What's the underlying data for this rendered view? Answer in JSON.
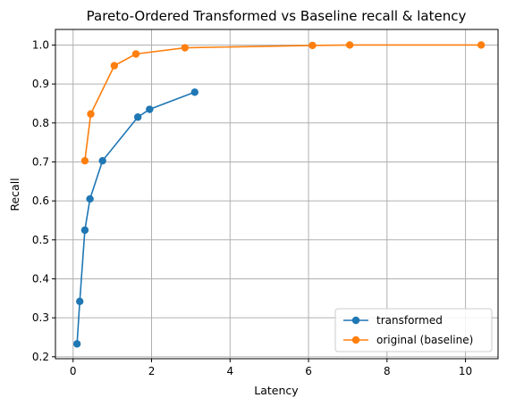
{
  "chart_data": {
    "type": "line",
    "title": "Pareto-Ordered Transformed vs Baseline recall & latency",
    "xlabel": "Latency",
    "ylabel": "Recall",
    "xlim": [
      -0.45,
      10.83
    ],
    "ylim": [
      0.195,
      1.04
    ],
    "xticks": [
      0,
      2,
      4,
      6,
      8,
      10
    ],
    "yticks": [
      0.2,
      0.3,
      0.4,
      0.5,
      0.6,
      0.7,
      0.8,
      0.9,
      1.0
    ],
    "xtick_labels": [
      "0",
      "2",
      "4",
      "6",
      "8",
      "10"
    ],
    "ytick_labels": [
      "0.2",
      "0.3",
      "0.4",
      "0.5",
      "0.6",
      "0.7",
      "0.8",
      "0.9",
      "1.0"
    ],
    "grid": true,
    "legend_position": "lower-right",
    "series": [
      {
        "name": "transformed",
        "color": "#1f77b4",
        "marker": "circle",
        "x": [
          0.1,
          0.17,
          0.3,
          0.43,
          0.75,
          1.65,
          1.95,
          3.1
        ],
        "y": [
          0.233,
          0.342,
          0.525,
          0.605,
          0.703,
          0.815,
          0.835,
          0.879
        ]
      },
      {
        "name": "original (baseline)",
        "color": "#ff7f0e",
        "marker": "circle",
        "x": [
          0.3,
          0.45,
          1.05,
          1.6,
          2.85,
          6.1,
          7.05,
          10.4
        ],
        "y": [
          0.703,
          0.823,
          0.947,
          0.977,
          0.993,
          0.999,
          1.0,
          1.0
        ]
      }
    ]
  }
}
